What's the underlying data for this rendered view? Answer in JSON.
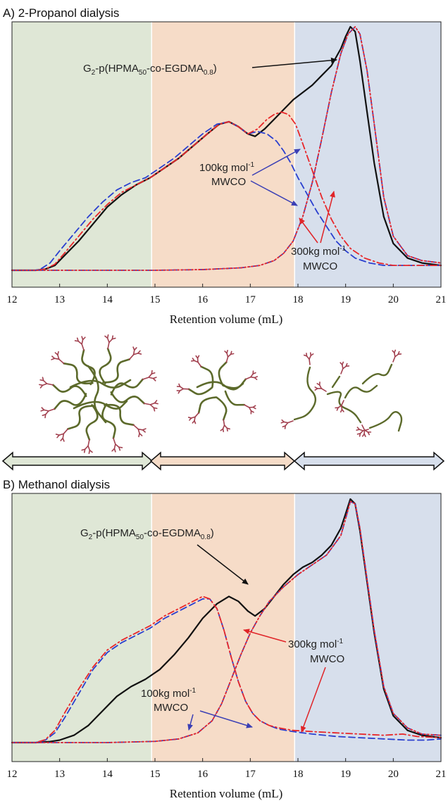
{
  "colors": {
    "region_left": "#dfe7d6",
    "region_mid": "#f6dcc8",
    "region_right": "#d7dfec",
    "original": "#111111",
    "mwco100": "#2a3fcf",
    "mwco300": "#e8272a",
    "polymer_chain": "#5c6a2b",
    "dendron": "#a2404f"
  },
  "chart_data": [
    {
      "type": "line",
      "panel_title": "A) 2-Propanol dialysis",
      "xlabel": "Retention volume (mL)",
      "ylabel": "",
      "xlim": [
        12,
        21
      ],
      "x_ticks": [
        "12",
        "13",
        "14",
        "15",
        "16",
        "17",
        "18",
        "19",
        "20",
        "21"
      ],
      "shaded_regions": [
        {
          "from": 12,
          "to": 14.93
        },
        {
          "from": 14.93,
          "to": 17.93
        },
        {
          "from": 17.93,
          "to": 21
        }
      ],
      "series": [
        {
          "key": "orig",
          "style": "solid",
          "x": [
            12,
            12.5,
            12.7,
            12.9,
            13.1,
            13.4,
            13.7,
            14.0,
            14.3,
            14.6,
            14.9,
            15.2,
            15.5,
            15.8,
            16.1,
            16.35,
            16.55,
            16.75,
            16.95,
            17.1,
            17.3,
            17.5,
            17.7,
            17.9,
            18.1,
            18.3,
            18.5,
            18.7,
            18.9,
            19.0,
            19.1,
            19.2,
            19.3,
            19.45,
            19.6,
            19.8,
            20.0,
            20.3,
            20.6,
            21.0
          ],
          "y": [
            0,
            0,
            0.005,
            0.02,
            0.06,
            0.12,
            0.19,
            0.26,
            0.31,
            0.35,
            0.38,
            0.42,
            0.46,
            0.51,
            0.56,
            0.6,
            0.61,
            0.59,
            0.56,
            0.55,
            0.58,
            0.62,
            0.66,
            0.7,
            0.73,
            0.76,
            0.8,
            0.84,
            0.91,
            0.96,
            1.0,
            0.98,
            0.86,
            0.65,
            0.44,
            0.22,
            0.11,
            0.05,
            0.03,
            0.02
          ]
        },
        {
          "key": "a100_ret",
          "style": "dash",
          "x": [
            12,
            12.5,
            12.6,
            12.8,
            13.0,
            13.3,
            13.6,
            13.9,
            14.2,
            14.5,
            14.8,
            15.1,
            15.4,
            15.7,
            16.0,
            16.3,
            16.55,
            16.75,
            16.95,
            17.15,
            17.35,
            17.55,
            17.7,
            17.85,
            18.0,
            18.2,
            18.4,
            18.6,
            18.8,
            19.0,
            19.2,
            19.5,
            19.8,
            20.2,
            20.6,
            21.0
          ],
          "y": [
            0,
            0,
            0.005,
            0.03,
            0.08,
            0.15,
            0.22,
            0.28,
            0.33,
            0.36,
            0.38,
            0.42,
            0.46,
            0.51,
            0.56,
            0.6,
            0.61,
            0.59,
            0.56,
            0.57,
            0.56,
            0.53,
            0.49,
            0.44,
            0.38,
            0.31,
            0.24,
            0.18,
            0.12,
            0.08,
            0.05,
            0.03,
            0.02,
            0.02,
            0.02,
            0.02
          ]
        },
        {
          "key": "a300_ret",
          "style": "dashdot",
          "x": [
            12,
            12.5,
            12.7,
            12.9,
            13.1,
            13.4,
            13.7,
            14.0,
            14.3,
            14.6,
            14.9,
            15.2,
            15.5,
            15.8,
            16.1,
            16.35,
            16.55,
            16.75,
            16.95,
            17.15,
            17.35,
            17.5,
            17.65,
            17.8,
            17.95,
            18.1,
            18.3,
            18.5,
            18.7,
            18.9,
            19.1,
            19.4,
            19.7,
            20.0,
            20.4,
            21.0
          ],
          "y": [
            0,
            0,
            0.005,
            0.025,
            0.07,
            0.14,
            0.21,
            0.27,
            0.32,
            0.35,
            0.38,
            0.42,
            0.46,
            0.51,
            0.56,
            0.6,
            0.61,
            0.59,
            0.56,
            0.58,
            0.62,
            0.64,
            0.65,
            0.64,
            0.6,
            0.52,
            0.41,
            0.3,
            0.21,
            0.14,
            0.09,
            0.05,
            0.03,
            0.02,
            0.02,
            0.02
          ]
        },
        {
          "key": "a100_perm",
          "style": "dashdot",
          "x": [
            12,
            13,
            14,
            15,
            16,
            16.8,
            17.2,
            17.5,
            17.7,
            17.9,
            18.1,
            18.3,
            18.5,
            18.7,
            18.9,
            19.05,
            19.2,
            19.3,
            19.45,
            19.6,
            19.8,
            20.0,
            20.3,
            20.6,
            21.0
          ],
          "y": [
            0,
            0,
            0,
            0,
            0.003,
            0.01,
            0.02,
            0.04,
            0.07,
            0.12,
            0.22,
            0.36,
            0.54,
            0.73,
            0.89,
            0.97,
            1.0,
            0.97,
            0.82,
            0.6,
            0.3,
            0.14,
            0.06,
            0.04,
            0.03
          ]
        },
        {
          "key": "a300_perm",
          "style": "dot",
          "x": [
            12,
            13,
            14,
            15,
            16,
            16.8,
            17.2,
            17.5,
            17.7,
            17.9,
            18.1,
            18.3,
            18.5,
            18.7,
            18.9,
            19.05,
            19.2,
            19.3,
            19.45,
            19.6,
            19.8,
            20.0,
            20.3,
            20.6,
            21.0
          ],
          "y": [
            0,
            0,
            0,
            0,
            0.003,
            0.01,
            0.02,
            0.04,
            0.07,
            0.12,
            0.22,
            0.36,
            0.54,
            0.73,
            0.89,
            0.97,
            1.0,
            0.97,
            0.82,
            0.6,
            0.3,
            0.14,
            0.06,
            0.04,
            0.03
          ]
        }
      ],
      "annotations": {
        "orig_label_main": "G",
        "orig_label_sub1": "2",
        "orig_label_mid": "-p(HPMA",
        "orig_label_sub2": "50",
        "orig_label_mid2": "-co-EGDMA",
        "orig_label_sub3": "0.8",
        "orig_label_end": ")",
        "mwco100_line1": "100kg mol",
        "mwco100_sup": "-1",
        "mwco100_line2": "MWCO",
        "mwco300_line1": "300kg mol",
        "mwco300_sup": "-1",
        "mwco300_line2": "MWCO"
      }
    },
    {
      "type": "line",
      "panel_title": "B) Methanol dialysis",
      "xlabel": "Retention volume (mL)",
      "ylabel": "",
      "xlim": [
        12,
        21
      ],
      "x_ticks": [
        "12",
        "13",
        "14",
        "15",
        "16",
        "17",
        "18",
        "19",
        "20",
        "21"
      ],
      "shaded_regions": [
        {
          "from": 12,
          "to": 14.93
        },
        {
          "from": 14.93,
          "to": 17.93
        },
        {
          "from": 17.93,
          "to": 21
        }
      ],
      "series": [
        {
          "key": "orig",
          "style": "solid",
          "x": [
            12,
            12.5,
            12.8,
            13.0,
            13.3,
            13.6,
            13.9,
            14.2,
            14.5,
            14.8,
            15.1,
            15.4,
            15.7,
            16.0,
            16.3,
            16.55,
            16.75,
            16.95,
            17.1,
            17.3,
            17.5,
            17.7,
            17.9,
            18.1,
            18.3,
            18.5,
            18.7,
            18.9,
            19.0,
            19.1,
            19.2,
            19.3,
            19.45,
            19.6,
            19.8,
            20.0,
            20.3,
            20.6,
            21.0
          ],
          "y": [
            0,
            0,
            0.004,
            0.01,
            0.03,
            0.07,
            0.13,
            0.19,
            0.23,
            0.26,
            0.3,
            0.36,
            0.43,
            0.51,
            0.57,
            0.6,
            0.58,
            0.54,
            0.52,
            0.55,
            0.6,
            0.65,
            0.69,
            0.72,
            0.74,
            0.77,
            0.81,
            0.88,
            0.94,
            1.0,
            0.98,
            0.87,
            0.66,
            0.45,
            0.22,
            0.11,
            0.05,
            0.03,
            0.02
          ]
        },
        {
          "key": "b100_ret",
          "style": "dash",
          "x": [
            12,
            12.5,
            12.7,
            12.9,
            13.1,
            13.4,
            13.7,
            14.0,
            14.3,
            14.6,
            14.9,
            15.2,
            15.5,
            15.8,
            16.0,
            16.15,
            16.3,
            16.45,
            16.6,
            16.75,
            16.9,
            17.05,
            17.2,
            17.4,
            17.6,
            17.9,
            18.3,
            18.8,
            19.3,
            19.8,
            20.3,
            20.7,
            21.0
          ],
          "y": [
            0,
            0,
            0.01,
            0.04,
            0.1,
            0.2,
            0.3,
            0.37,
            0.41,
            0.44,
            0.47,
            0.51,
            0.54,
            0.57,
            0.59,
            0.59,
            0.55,
            0.46,
            0.35,
            0.25,
            0.17,
            0.12,
            0.09,
            0.07,
            0.055,
            0.045,
            0.035,
            0.025,
            0.02,
            0.015,
            0.01,
            0.01,
            0.015
          ]
        },
        {
          "key": "b300_ret",
          "style": "dashdot",
          "x": [
            12,
            12.5,
            12.7,
            12.9,
            13.1,
            13.4,
            13.7,
            14.0,
            14.3,
            14.6,
            14.9,
            15.2,
            15.5,
            15.8,
            16.0,
            16.15,
            16.3,
            16.45,
            16.6,
            16.75,
            16.9,
            17.05,
            17.2,
            17.4,
            17.6,
            17.9,
            18.3,
            18.8,
            19.3,
            19.8,
            20.2,
            20.5,
            21.0
          ],
          "y": [
            0,
            0,
            0.012,
            0.05,
            0.12,
            0.22,
            0.31,
            0.38,
            0.42,
            0.45,
            0.48,
            0.52,
            0.55,
            0.58,
            0.6,
            0.59,
            0.55,
            0.46,
            0.35,
            0.25,
            0.17,
            0.12,
            0.09,
            0.07,
            0.06,
            0.05,
            0.045,
            0.04,
            0.035,
            0.03,
            0.035,
            0.025,
            0.02
          ]
        },
        {
          "key": "b100_perm",
          "style": "dashdot",
          "x": [
            12,
            13,
            14,
            15,
            15.5,
            15.9,
            16.2,
            16.4,
            16.6,
            16.8,
            17.0,
            17.2,
            17.4,
            17.7,
            18.0,
            18.3,
            18.6,
            18.9,
            19.0,
            19.1,
            19.2,
            19.3,
            19.45,
            19.6,
            19.8,
            20.0,
            20.3,
            20.6,
            21.0
          ],
          "y": [
            0,
            0,
            0,
            0.005,
            0.015,
            0.04,
            0.09,
            0.16,
            0.26,
            0.36,
            0.45,
            0.52,
            0.58,
            0.64,
            0.69,
            0.73,
            0.77,
            0.85,
            0.92,
            0.99,
            0.98,
            0.88,
            0.67,
            0.46,
            0.23,
            0.12,
            0.06,
            0.035,
            0.03
          ]
        },
        {
          "key": "b300_perm",
          "style": "dot",
          "x": [
            12,
            13,
            14,
            15,
            15.5,
            15.9,
            16.2,
            16.4,
            16.6,
            16.8,
            17.0,
            17.2,
            17.4,
            17.7,
            18.0,
            18.3,
            18.6,
            18.9,
            19.0,
            19.1,
            19.2,
            19.3,
            19.45,
            19.6,
            19.8,
            20.0,
            20.3,
            20.6,
            21.0
          ],
          "y": [
            0,
            0,
            0,
            0.005,
            0.015,
            0.04,
            0.09,
            0.16,
            0.26,
            0.36,
            0.45,
            0.52,
            0.58,
            0.64,
            0.69,
            0.73,
            0.77,
            0.85,
            0.92,
            0.99,
            0.98,
            0.88,
            0.67,
            0.46,
            0.23,
            0.12,
            0.06,
            0.035,
            0.03
          ]
        }
      ],
      "annotations": {
        "orig_label_main": "G",
        "orig_label_sub1": "2",
        "orig_label_mid": "-p(HPMA",
        "orig_label_sub2": "50",
        "orig_label_mid2": "-co-EGDMA",
        "orig_label_sub3": "0.8",
        "orig_label_end": ")",
        "mwco100_line1": "100kg mol",
        "mwco100_sup": "-1",
        "mwco100_line2": "MWCO",
        "mwco300_line1": "300kg mol",
        "mwco300_sup": "-1",
        "mwco300_line2": "MWCO"
      }
    }
  ]
}
